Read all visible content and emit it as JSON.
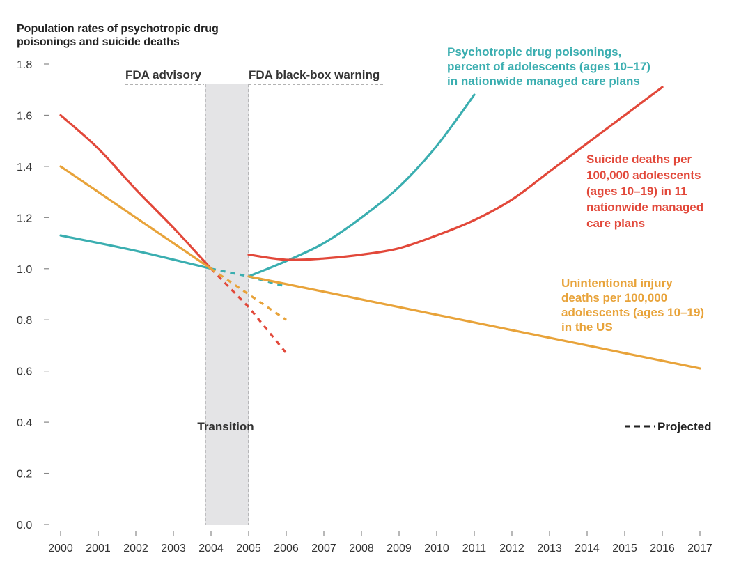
{
  "chart_data": {
    "type": "line",
    "title": [
      "Population rates of psychotropic drug",
      "poisonings and suicide deaths"
    ],
    "xlabel": "",
    "ylabel": "",
    "xlim": [
      2000,
      2017
    ],
    "ylim": [
      0,
      1.8
    ],
    "x_ticks": [
      "2000",
      "2001",
      "2002",
      "2003",
      "2004",
      "2005",
      "2006",
      "2007",
      "2008",
      "2009",
      "2010",
      "2011",
      "2012",
      "2013",
      "2014",
      "2015",
      "2016",
      "2017"
    ],
    "y_ticks": [
      "0.0",
      "0.2",
      "0.4",
      "0.6",
      "0.8",
      "1.0",
      "1.2",
      "1.4",
      "1.6",
      "1.8"
    ],
    "series": [
      {
        "name": "Psychotropic drug poisonings, percent of adolescents (ages 10–17) in nationwide managed care plans",
        "label_lines": [
          "Psychotropic drug poisonings,",
          "percent of adolescents (ages 10–17)",
          "in nationwide managed care plans"
        ],
        "color": "#3aaeb0",
        "actual_pre": [
          [
            2000,
            1.13
          ],
          [
            2002,
            1.07
          ],
          [
            2004,
            1.0
          ]
        ],
        "actual_post": [
          [
            2005,
            0.97
          ],
          [
            2006,
            1.03
          ],
          [
            2007,
            1.1
          ],
          [
            2008,
            1.2
          ],
          [
            2009,
            1.32
          ],
          [
            2010,
            1.48
          ],
          [
            2011,
            1.68
          ]
        ],
        "projected": [
          [
            2004,
            1.0
          ],
          [
            2005,
            0.97
          ],
          [
            2006,
            0.93
          ]
        ]
      },
      {
        "name": "Suicide deaths per 100,000 adolescents (ages 10–19) in 11 nationwide managed care plans",
        "label_lines": [
          "Suicide deaths per",
          "100,000 adolescents",
          "(ages 10–19) in 11",
          "nationwide managed",
          "care plans"
        ],
        "color": "#e2483a",
        "actual_pre": [
          [
            2000,
            1.6
          ],
          [
            2001,
            1.47
          ],
          [
            2002,
            1.31
          ],
          [
            2003,
            1.16
          ],
          [
            2004,
            1.0
          ]
        ],
        "actual_post": [
          [
            2005,
            1.055
          ],
          [
            2006,
            1.035
          ],
          [
            2007,
            1.04
          ],
          [
            2008,
            1.055
          ],
          [
            2009,
            1.08
          ],
          [
            2010,
            1.13
          ],
          [
            2011,
            1.19
          ],
          [
            2012,
            1.27
          ],
          [
            2013,
            1.38
          ],
          [
            2014,
            1.49
          ],
          [
            2015,
            1.6
          ],
          [
            2016,
            1.71
          ]
        ],
        "projected": [
          [
            2004,
            1.0
          ],
          [
            2005,
            0.85
          ],
          [
            2006,
            0.67
          ]
        ]
      },
      {
        "name": "Unintentional injury deaths per 100,000 adolescents (ages 10–19) in the US",
        "label_lines": [
          "Unintentional injury",
          "deaths per 100,000",
          "adolescents (ages 10–19)",
          "in the US"
        ],
        "color": "#e8a33a",
        "actual_pre": [
          [
            2000,
            1.4
          ],
          [
            2004,
            1.0
          ]
        ],
        "actual_post": [
          [
            2005,
            0.97
          ],
          [
            2017,
            0.61
          ]
        ],
        "projected": [
          [
            2004,
            1.0
          ],
          [
            2005,
            0.9
          ],
          [
            2006,
            0.8
          ]
        ]
      }
    ],
    "annotations": {
      "fda_advisory": "FDA advisory",
      "fda_warning": "FDA black-box warning",
      "transition": "Transition",
      "projected_legend": "Projected",
      "transition_span": [
        2003.85,
        2005
      ]
    }
  }
}
